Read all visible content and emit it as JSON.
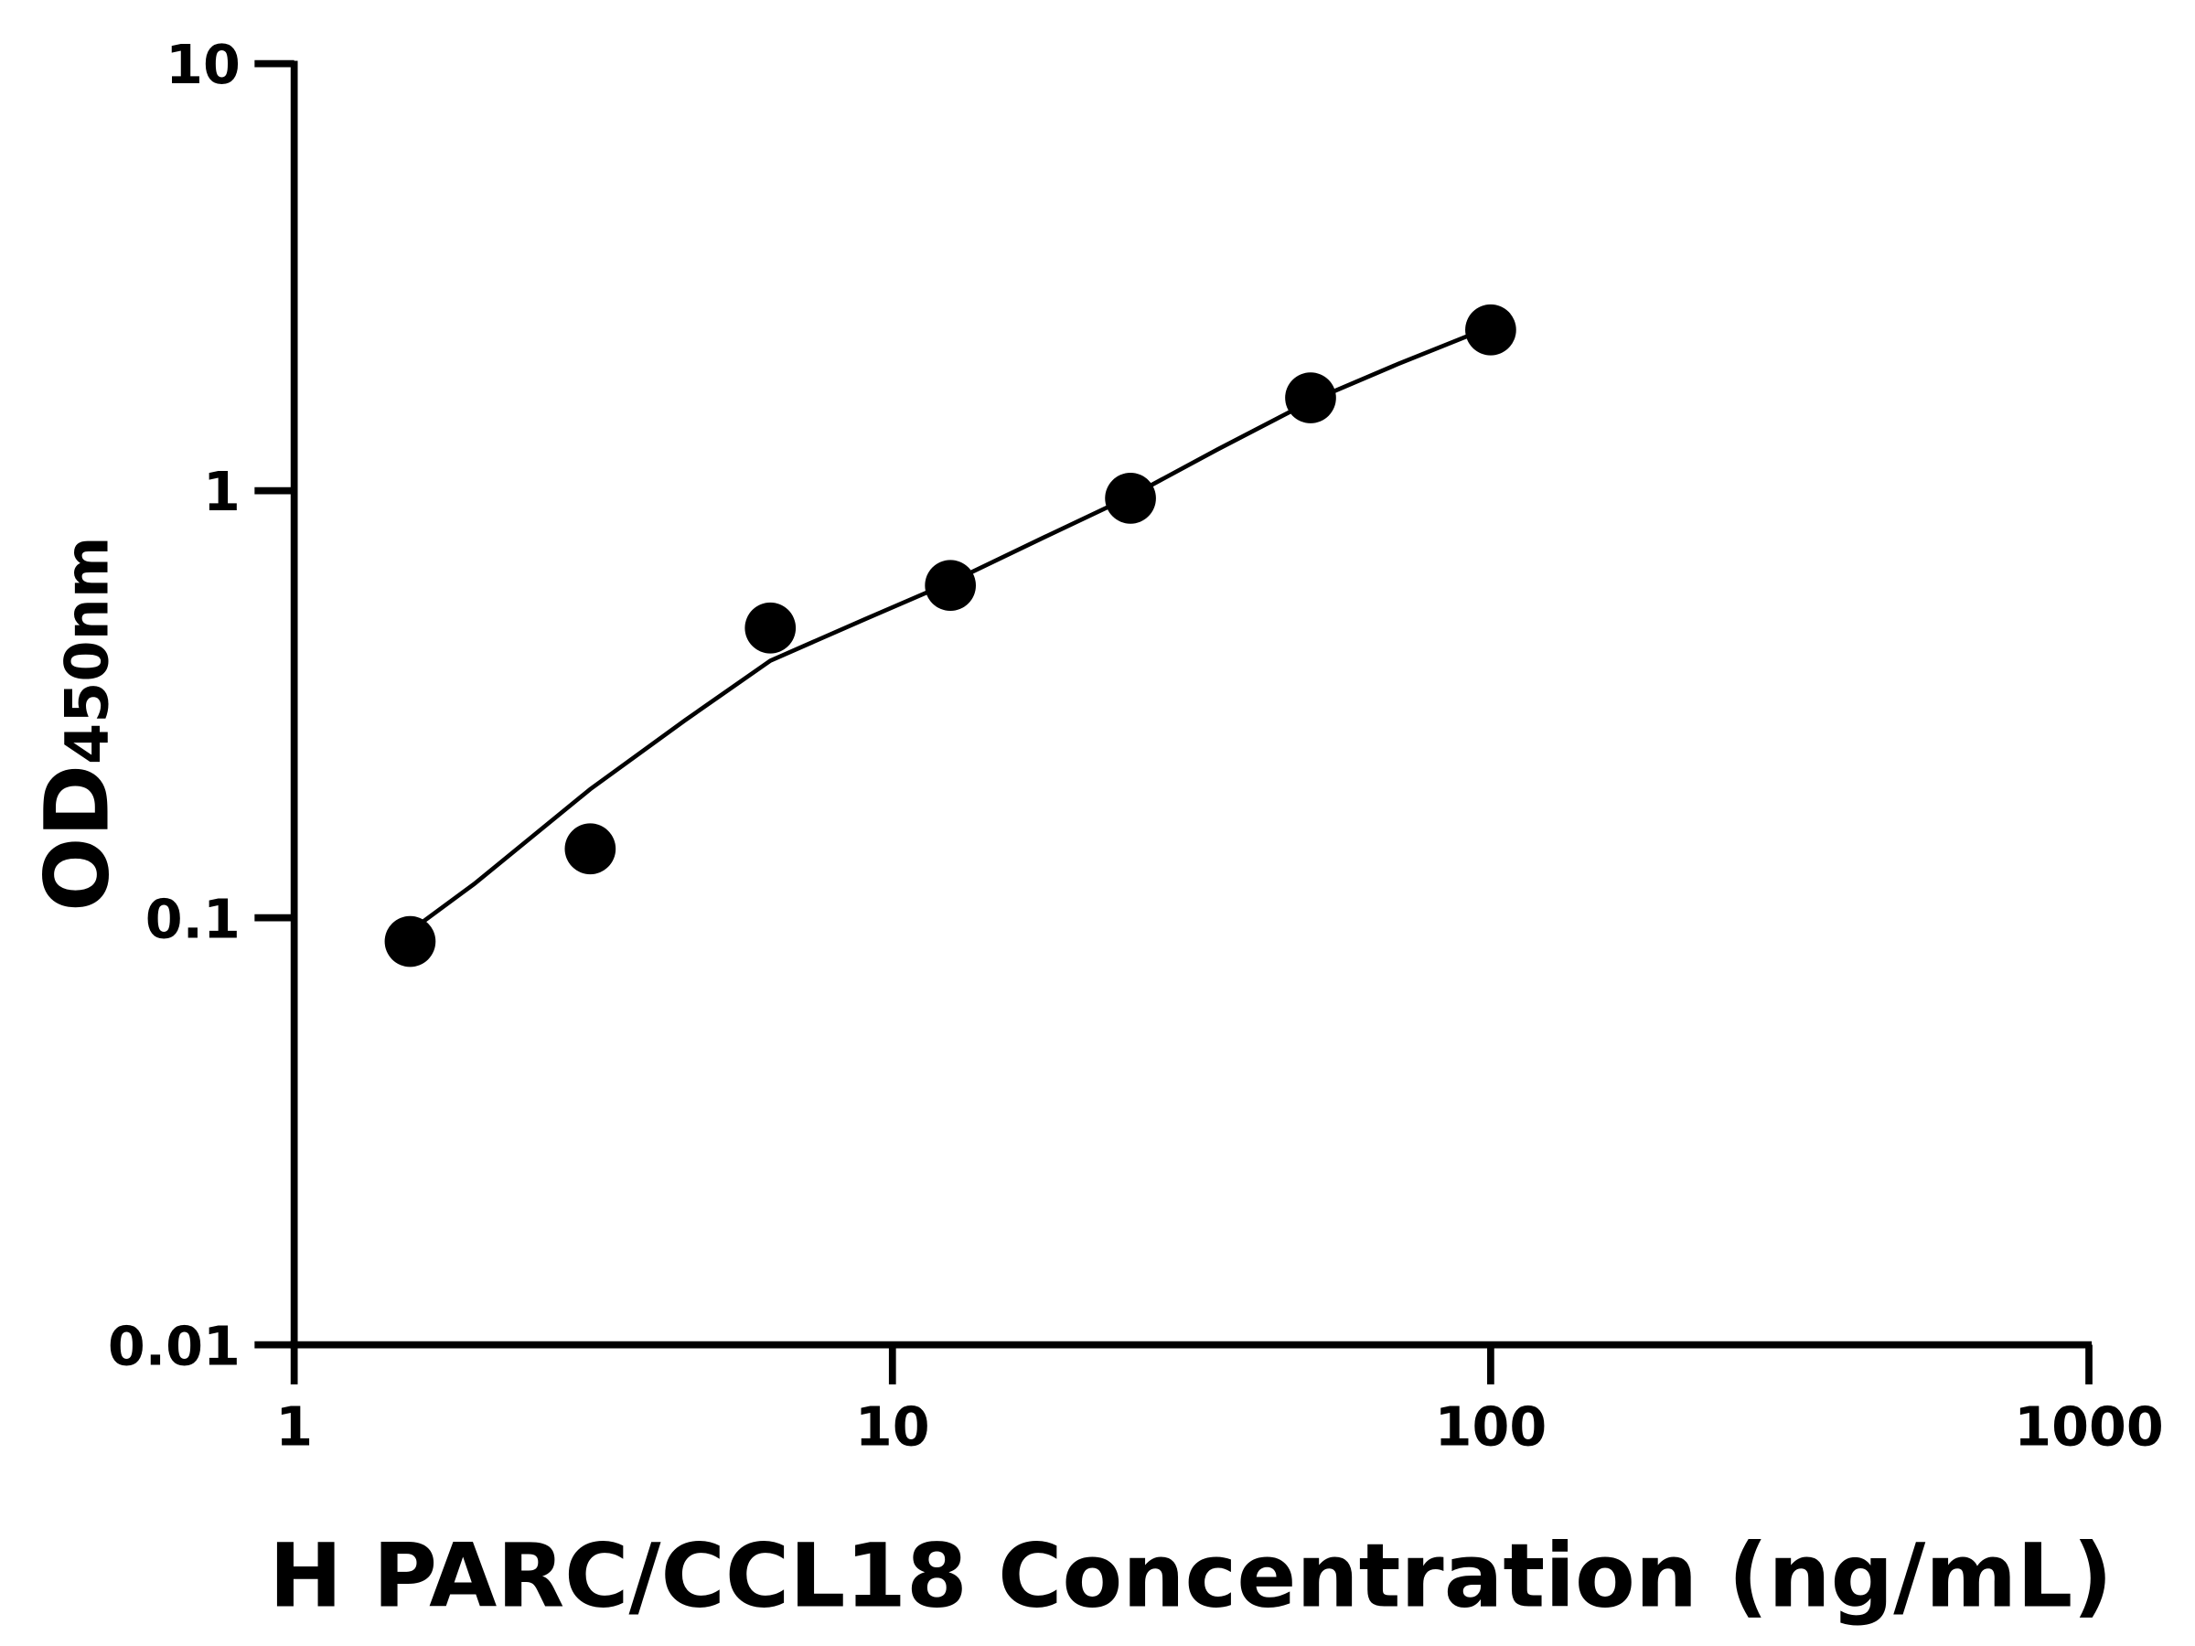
{
  "chart_data": {
    "type": "scatter",
    "title": "",
    "xlabel": "H PARC/CCL18 Concentration (ng/mL)",
    "ylabel_main": "OD",
    "ylabel_sub": "450nm",
    "x_scale": "log",
    "y_scale": "log",
    "xlim": [
      1,
      1000
    ],
    "ylim": [
      0.01,
      10
    ],
    "x_ticks": [
      1,
      10,
      100,
      1000
    ],
    "x_tick_labels": [
      "1",
      "10",
      "100",
      "1000"
    ],
    "y_ticks": [
      0.01,
      0.1,
      1,
      10
    ],
    "y_tick_labels": [
      "0.01",
      "0.1",
      "1",
      "10"
    ],
    "grid": false,
    "legend": "none",
    "points": {
      "x": [
        1.5625,
        3.125,
        6.25,
        12.5,
        25,
        50,
        100
      ],
      "y": [
        0.088,
        0.145,
        0.477,
        0.6,
        0.96,
        1.65,
        2.38
      ]
    },
    "fit_curve": {
      "x": [
        1.5625,
        2,
        3.125,
        4.5,
        6.25,
        9,
        12.5,
        18,
        25,
        35,
        50,
        70,
        100
      ],
      "y": [
        0.093,
        0.12,
        0.2,
        0.29,
        0.4,
        0.5,
        0.61,
        0.78,
        0.97,
        1.25,
        1.62,
        1.98,
        2.42
      ]
    },
    "colors": {
      "marks": "#000000",
      "background": "#ffffff"
    }
  }
}
